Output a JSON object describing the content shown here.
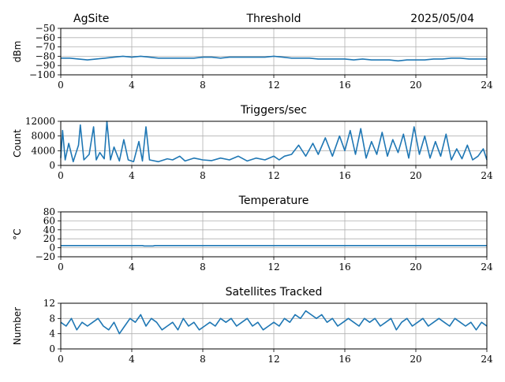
{
  "header": {
    "site": "AgSite",
    "date": "2025/05/04"
  },
  "colors": {
    "series": "#1f77b4",
    "grid": "#b0b0b0"
  },
  "chart_data": [
    {
      "type": "line",
      "title": "Threshold",
      "ylabel": "dBm",
      "xlim": [
        0,
        24
      ],
      "ylim": [
        -100,
        -50
      ],
      "xticks": [
        0,
        4,
        8,
        12,
        16,
        20,
        24
      ],
      "yticks": [
        -100,
        -90,
        -80,
        -70,
        -60,
        -50
      ],
      "ytick_labels": [
        "−100",
        "−90",
        "−80",
        "−70",
        "−60",
        "−50"
      ],
      "grid": true,
      "x": [
        0,
        0.5,
        1,
        1.5,
        2,
        2.5,
        3,
        3.5,
        4,
        4.5,
        5,
        5.5,
        6,
        6.5,
        7,
        7.5,
        8,
        8.5,
        9,
        9.5,
        10,
        10.5,
        11,
        11.5,
        12,
        12.5,
        13,
        13.5,
        14,
        14.5,
        15,
        15.5,
        16,
        16.5,
        17,
        17.5,
        18,
        18.5,
        19,
        19.5,
        20,
        20.5,
        21,
        21.5,
        22,
        22.5,
        23,
        23.5,
        24
      ],
      "y": [
        -82,
        -82,
        -83,
        -84,
        -83,
        -82,
        -81,
        -80,
        -81,
        -80,
        -81,
        -82,
        -82,
        -82,
        -82,
        -82,
        -81,
        -81,
        -82,
        -81,
        -81,
        -81,
        -81,
        -81,
        -80,
        -81,
        -82,
        -82,
        -82,
        -83,
        -83,
        -83,
        -83,
        -84,
        -83,
        -84,
        -84,
        -84,
        -85,
        -84,
        -84,
        -84,
        -83,
        -83,
        -82,
        -82,
        -83,
        -83,
        -83
      ]
    },
    {
      "type": "line",
      "title": "Triggers/sec",
      "ylabel": "Count",
      "xlim": [
        0,
        24
      ],
      "ylim": [
        0,
        12000
      ],
      "xticks": [
        0,
        4,
        8,
        12,
        16,
        20,
        24
      ],
      "yticks": [
        0,
        4000,
        8000,
        12000
      ],
      "ytick_labels": [
        "0",
        "4000",
        "8000",
        "12000"
      ],
      "grid": true,
      "x": [
        0,
        0.1,
        0.25,
        0.45,
        0.7,
        1.0,
        1.1,
        1.3,
        1.6,
        1.85,
        2.0,
        2.2,
        2.45,
        2.6,
        2.8,
        3.0,
        3.3,
        3.55,
        3.8,
        4.1,
        4.4,
        4.6,
        4.8,
        5.0,
        5.5,
        6.0,
        6.3,
        6.7,
        7.0,
        7.5,
        8.0,
        8.5,
        9.0,
        9.5,
        10.0,
        10.5,
        11.0,
        11.5,
        12.0,
        12.3,
        12.6,
        13.0,
        13.4,
        13.8,
        14.2,
        14.5,
        14.9,
        15.3,
        15.7,
        16.0,
        16.3,
        16.6,
        16.9,
        17.2,
        17.5,
        17.8,
        18.1,
        18.4,
        18.7,
        19.0,
        19.3,
        19.6,
        19.9,
        20.2,
        20.5,
        20.8,
        21.1,
        21.4,
        21.7,
        22.0,
        22.3,
        22.6,
        22.9,
        23.2,
        23.5,
        23.8,
        24.0
      ],
      "y": [
        2000,
        9500,
        1500,
        6000,
        1000,
        5500,
        11000,
        1500,
        3000,
        10500,
        1500,
        3500,
        1800,
        12000,
        1500,
        5000,
        1200,
        7000,
        1500,
        1000,
        6500,
        1200,
        10500,
        1500,
        1000,
        1800,
        1500,
        2500,
        1200,
        2000,
        1500,
        1300,
        2000,
        1500,
        2500,
        1200,
        2000,
        1500,
        2500,
        1500,
        2500,
        3000,
        5500,
        2500,
        6000,
        3000,
        7500,
        2500,
        8000,
        4000,
        9500,
        3000,
        10000,
        2000,
        6500,
        3000,
        9000,
        2500,
        7000,
        3500,
        8500,
        2000,
        10500,
        3000,
        8000,
        2000,
        6500,
        2500,
        8500,
        1500,
        4500,
        1800,
        5500,
        1500,
        2500,
        4500,
        1500
      ]
    },
    {
      "type": "line",
      "title": "Temperature",
      "ylabel": "°C",
      "xlim": [
        0,
        24
      ],
      "ylim": [
        -20,
        80
      ],
      "xticks": [
        0,
        4,
        8,
        12,
        16,
        20,
        24
      ],
      "yticks": [
        -20,
        0,
        20,
        40,
        60,
        80
      ],
      "ytick_labels": [
        "−20",
        "0",
        "20",
        "40",
        "60",
        "80"
      ],
      "grid": true,
      "x": [
        0,
        4.6,
        4.7,
        5.0,
        5.2,
        5.3,
        24
      ],
      "y": [
        5,
        5,
        4,
        4,
        4,
        5,
        5
      ]
    },
    {
      "type": "line",
      "title": "Satellites Tracked",
      "ylabel": "Number",
      "xlim": [
        0,
        24
      ],
      "ylim": [
        0,
        12
      ],
      "xticks": [
        0,
        4,
        8,
        12,
        16,
        20,
        24
      ],
      "yticks": [
        0,
        4,
        8,
        12
      ],
      "ytick_labels": [
        "0",
        "4",
        "8",
        "12"
      ],
      "grid": true,
      "x": [
        0,
        0.3,
        0.6,
        0.9,
        1.2,
        1.5,
        1.8,
        2.1,
        2.4,
        2.7,
        3.0,
        3.3,
        3.6,
        3.9,
        4.2,
        4.5,
        4.8,
        5.1,
        5.4,
        5.7,
        6.0,
        6.3,
        6.6,
        6.9,
        7.2,
        7.5,
        7.8,
        8.1,
        8.4,
        8.7,
        9.0,
        9.3,
        9.6,
        9.9,
        10.2,
        10.5,
        10.8,
        11.1,
        11.4,
        11.7,
        12.0,
        12.3,
        12.6,
        12.9,
        13.2,
        13.5,
        13.8,
        14.1,
        14.4,
        14.7,
        15.0,
        15.3,
        15.6,
        15.9,
        16.2,
        16.5,
        16.8,
        17.1,
        17.4,
        17.7,
        18.0,
        18.3,
        18.6,
        18.9,
        19.2,
        19.5,
        19.8,
        20.1,
        20.4,
        20.7,
        21.0,
        21.3,
        21.6,
        21.9,
        22.2,
        22.5,
        22.8,
        23.1,
        23.4,
        23.7,
        24.0
      ],
      "y": [
        7,
        6,
        8,
        5,
        7,
        6,
        7,
        8,
        6,
        5,
        7,
        4,
        6,
        8,
        7,
        9,
        6,
        8,
        7,
        5,
        6,
        7,
        5,
        8,
        6,
        7,
        5,
        6,
        7,
        6,
        8,
        7,
        8,
        6,
        7,
        8,
        6,
        7,
        5,
        6,
        7,
        6,
        8,
        7,
        9,
        8,
        10,
        9,
        8,
        9,
        7,
        8,
        6,
        7,
        8,
        7,
        6,
        8,
        7,
        8,
        6,
        7,
        8,
        5,
        7,
        8,
        6,
        7,
        8,
        6,
        7,
        8,
        7,
        6,
        8,
        7,
        6,
        7,
        5,
        7,
        6
      ]
    }
  ]
}
